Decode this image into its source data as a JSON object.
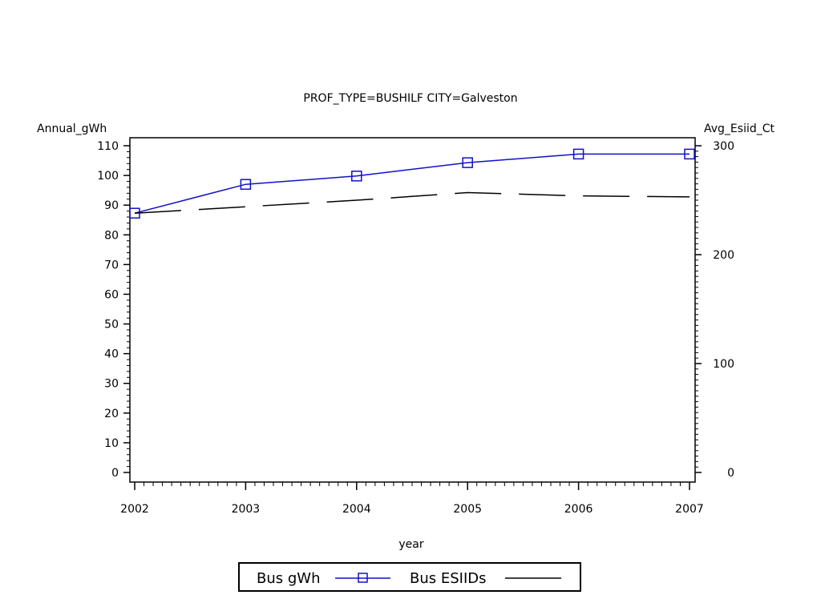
{
  "chart_data": {
    "type": "line",
    "title": "PROF_TYPE=BUSHILF CITY=Galveston",
    "xlabel": "year",
    "ylabel_left": "Annual_gWh",
    "ylabel_right": "Avg_Esiid_Ct",
    "x": [
      2002,
      2003,
      2004,
      2005,
      2006,
      2007
    ],
    "x_tick_labels": [
      "2002",
      "2003",
      "2004",
      "2005",
      "2006",
      "2007"
    ],
    "ylim_left": [
      0,
      110
    ],
    "y_ticks_left": [
      0,
      10,
      20,
      30,
      40,
      50,
      60,
      70,
      80,
      90,
      100,
      110
    ],
    "y_tick_labels_left": [
      "0",
      "10",
      "20",
      "30",
      "40",
      "50",
      "60",
      "70",
      "80",
      "90",
      "100",
      "110"
    ],
    "ylim_right": [
      0,
      300
    ],
    "y_ticks_right": [
      0,
      100,
      200,
      300
    ],
    "y_tick_labels_right": [
      "0",
      "100",
      "200",
      "300"
    ],
    "grid": false,
    "legend_position": "bottom",
    "series": [
      {
        "name": "Bus gWh",
        "axis": "left",
        "color": "#1010c8",
        "marker": "square",
        "line_style": "solid",
        "values": [
          87.3,
          97.0,
          99.8,
          104.3,
          107.2,
          107.2
        ]
      },
      {
        "name": "Bus ESIIDs",
        "axis": "right",
        "color": "#000000",
        "marker": "none",
        "line_style": "dashed",
        "values": [
          238,
          244,
          250,
          257,
          254,
          253
        ]
      }
    ]
  }
}
